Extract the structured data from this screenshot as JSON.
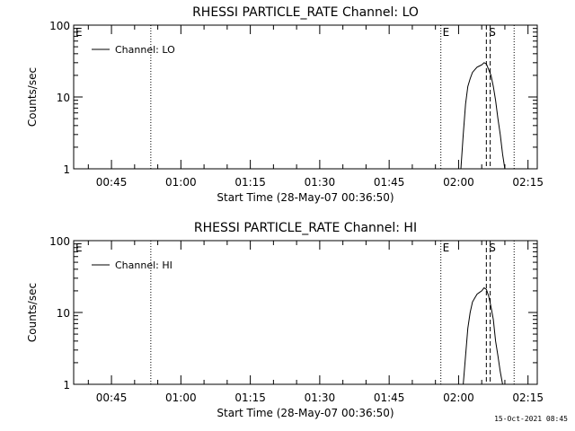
{
  "chart_data": [
    {
      "type": "line",
      "title": "RHESSI PARTICLE_RATE Channel: LO",
      "xlabel": "Start Time (28-May-07 00:36:50)",
      "ylabel": "Counts/sec",
      "x_ticks": [
        "00:45",
        "01:00",
        "01:15",
        "01:30",
        "01:45",
        "02:00",
        "02:15"
      ],
      "y_ticks": [
        "1",
        "10",
        "100"
      ],
      "yscale": "log",
      "xlim": [
        "00:36:50",
        "02:17:00"
      ],
      "ylim": [
        1,
        100
      ],
      "legend": {
        "label": "Channel: LO",
        "placement": "top-left"
      },
      "markers": {
        "dotted": [
          "00:53:30",
          "01:56:10",
          "02:12:00"
        ],
        "dashed": [
          "02:06:00",
          "02:06:50"
        ],
        "labels": [
          {
            "text": "E",
            "at": "00:36:50"
          },
          {
            "text": "E",
            "at": "01:56:10"
          },
          {
            "text": "S",
            "at": "02:06:10"
          }
        ]
      },
      "series": [
        {
          "name": "Channel: LO",
          "x": [
            "02:00:30",
            "02:01:00",
            "02:01:30",
            "02:02:00",
            "02:02:30",
            "02:03:00",
            "02:03:30",
            "02:04:00",
            "02:04:30",
            "02:05:00",
            "02:05:30",
            "02:06:00",
            "02:06:30",
            "02:07:00",
            "02:07:30",
            "02:08:00",
            "02:08:30",
            "02:09:00",
            "02:09:30",
            "02:10:00"
          ],
          "y": [
            1,
            3,
            8,
            14,
            18,
            22,
            24,
            26,
            27,
            28,
            30,
            29,
            24,
            20,
            14,
            9,
            5,
            3,
            1.6,
            1
          ]
        }
      ]
    },
    {
      "type": "line",
      "title": "RHESSI PARTICLE_RATE Channel: HI",
      "xlabel": "Start Time (28-May-07 00:36:50)",
      "ylabel": "Counts/sec",
      "x_ticks": [
        "00:45",
        "01:00",
        "01:15",
        "01:30",
        "01:45",
        "02:00",
        "02:15"
      ],
      "y_ticks": [
        "1",
        "10",
        "100"
      ],
      "yscale": "log",
      "xlim": [
        "00:36:50",
        "02:17:00"
      ],
      "ylim": [
        1,
        100
      ],
      "legend": {
        "label": "Channel: HI",
        "placement": "top-left"
      },
      "markers": {
        "dotted": [
          "00:53:30",
          "01:56:10",
          "02:12:00"
        ],
        "dashed": [
          "02:06:00",
          "02:06:50"
        ],
        "labels": [
          {
            "text": "E",
            "at": "00:36:50"
          },
          {
            "text": "E",
            "at": "01:56:10"
          },
          {
            "text": "S",
            "at": "02:06:10"
          }
        ]
      },
      "series": [
        {
          "name": "Channel: HI",
          "x": [
            "02:01:00",
            "02:01:30",
            "02:02:00",
            "02:02:30",
            "02:03:00",
            "02:03:30",
            "02:04:00",
            "02:04:30",
            "02:05:00",
            "02:05:30",
            "02:06:00",
            "02:06:30",
            "02:07:00",
            "02:07:30",
            "02:08:00",
            "02:08:30",
            "02:09:00",
            "02:09:30"
          ],
          "y": [
            1,
            2.5,
            6,
            10,
            14,
            16,
            18,
            19,
            20,
            22,
            21,
            17,
            12,
            8,
            4,
            2.5,
            1.5,
            1
          ]
        }
      ]
    }
  ],
  "footer": {
    "timestamp": "15-Oct-2021 08:45"
  }
}
